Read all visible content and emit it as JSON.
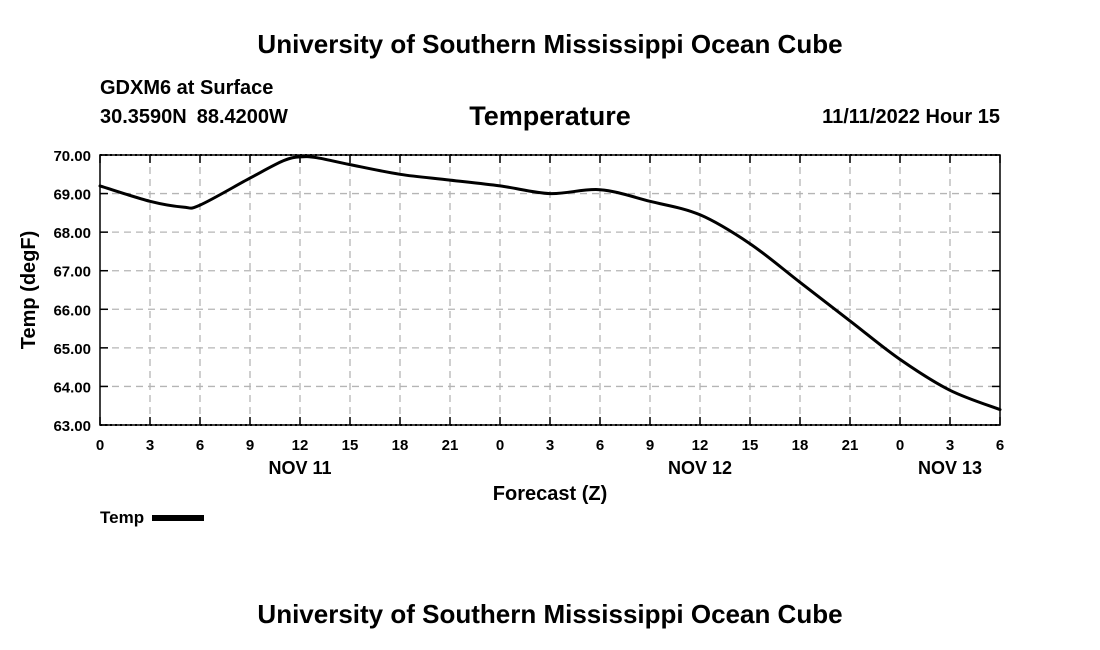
{
  "header": {
    "title": "University of Southern Mississippi Ocean Cube",
    "station": "GDXM6 at Surface",
    "lat": "30.3590N",
    "lon": "88.4200W",
    "chart_title": "Temperature",
    "valid_time": "11/11/2022 Hour 15"
  },
  "footer": {
    "title": "University of Southern Mississippi Ocean Cube"
  },
  "legend": {
    "label": "Temp"
  },
  "chart_data": {
    "type": "line",
    "title": "Temperature",
    "xlabel": "Forecast (Z)",
    "ylabel": "Temp (degF)",
    "ylim": [
      63,
      70
    ],
    "xlim": [
      0,
      54
    ],
    "y_ticks": [
      "63.00",
      "64.00",
      "65.00",
      "66.00",
      "67.00",
      "68.00",
      "69.00",
      "70.00"
    ],
    "x_tick_labels": [
      "0",
      "3",
      "6",
      "9",
      "12",
      "15",
      "18",
      "21",
      "0",
      "3",
      "6",
      "9",
      "12",
      "15",
      "18",
      "21",
      "0",
      "3",
      "6"
    ],
    "date_labels": [
      {
        "text": "NOV 11",
        "hour_offset": 12
      },
      {
        "text": "NOV 12",
        "hour_offset": 36
      },
      {
        "text": "NOV 13",
        "hour_offset": 51
      }
    ],
    "grid": true,
    "series": [
      {
        "name": "Temp",
        "x": [
          0,
          3,
          5,
          6,
          9,
          11,
          12,
          13,
          15,
          18,
          21,
          24,
          27,
          30,
          33,
          36,
          39,
          42,
          45,
          48,
          51,
          54
        ],
        "values": [
          69.2,
          68.8,
          68.65,
          68.7,
          69.4,
          69.85,
          69.95,
          69.93,
          69.75,
          69.5,
          69.35,
          69.2,
          69.0,
          69.1,
          68.8,
          68.45,
          67.7,
          66.7,
          65.7,
          64.7,
          63.9,
          63.4
        ]
      }
    ]
  }
}
